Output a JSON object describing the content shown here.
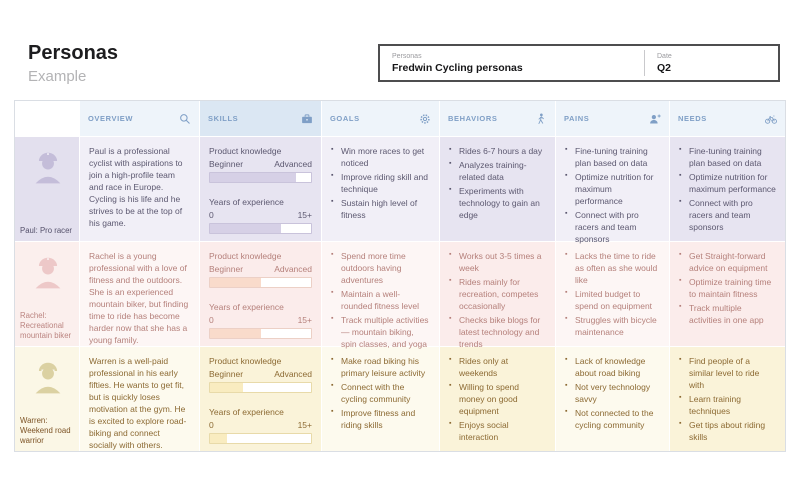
{
  "page": {
    "title": "Personas",
    "subtitle": "Example"
  },
  "info_box": {
    "left_label": "Personas",
    "left_value": "Fredwin Cycling personas",
    "right_label": "Date",
    "right_value": "Q2"
  },
  "colors": {
    "header_bg": "#eef4fa",
    "header_bg_active": "#dbe7f3",
    "header_text": "#7f9fc6"
  },
  "columns": [
    {
      "label": "OVERVIEW",
      "icon": "search-icon"
    },
    {
      "label": "SKILLS",
      "icon": "briefcase-icon"
    },
    {
      "label": "GOALS",
      "icon": "gear-icon"
    },
    {
      "label": "BEHAVIORS",
      "icon": "walking-person-icon"
    },
    {
      "label": "PAINS",
      "icon": "user-plus-icon"
    },
    {
      "label": "NEEDS",
      "icon": "bicycle-icon"
    }
  ],
  "skills_labels": {
    "product": "Product knowledge",
    "beginner": "Beginner",
    "advanced": "Advanced",
    "years": "Years of experience",
    "min": "0",
    "max": "15+"
  },
  "personas": [
    {
      "name": "Paul: Pro racer",
      "theme": {
        "bg_light": "#f1eff7",
        "bg_dark": "#e7e4f1",
        "bg_avatar": "#e3e0ee",
        "glyph": "#c4bdd9",
        "text": "#5c5870",
        "name": "#55516b",
        "fill": "#d6d0e6",
        "bar_border": "#c9c3db"
      },
      "overview": "Paul is a professional cyclist with aspirations to join a high-profile team and race in Europe. Cycling is his life and he strives to be at the top of his game.",
      "skills": {
        "product_pct": 85,
        "years_pct": 70
      },
      "goals": [
        "Win more races to get noticed",
        "Improve riding skill and technique",
        "Sustain high level of fitness"
      ],
      "behaviors": [
        "Rides 6-7 hours a day",
        "Analyzes training-related data",
        "Experiments with technology to gain an edge"
      ],
      "pains": [
        "Fine-tuning training plan based on data",
        "Optimize nutrition for maximum performance",
        "Connect with pro racers and team sponsors"
      ],
      "needs": [
        "Fine-tuning training plan based on data",
        "Optimize nutrition for maximum performance",
        "Connect with pro racers and team sponsors"
      ]
    },
    {
      "name": "Rachel: Recreational mountain biker",
      "theme": {
        "bg_light": "#fdf6f5",
        "bg_dark": "#fbeceb",
        "bg_avatar": "#fbefed",
        "glyph": "#edc8c8",
        "text": "#b5807b",
        "name": "#bb8480",
        "fill": "#f9dbcb",
        "bar_border": "#ecd0c6"
      },
      "overview": "Rachel is a young professional with a love of fitness and the outdoors. She is an experienced mountain biker, but finding time to ride has become harder now that she has a young family.",
      "skills": {
        "product_pct": 50,
        "years_pct": 50
      },
      "goals": [
        "Spend more time outdoors having adventures",
        "Maintain a well-rounded fitness level",
        "Track multiple activities — mountain biking, spin classes, and yoga"
      ],
      "behaviors": [
        "Works out 3-5 times a week",
        "Rides mainly for recreation, competes occasionally",
        "Checks bike blogs for latest technology and trends"
      ],
      "pains": [
        "Lacks the time to ride as often as she would like",
        "Limited budget to spend on equipment",
        "Struggles with bicycle maintenance"
      ],
      "needs": [
        "Get Straight-forward advice on equipment",
        "Optimize training time to maintain fitness",
        "Track multiple activities in one app"
      ]
    },
    {
      "name": "Warren: Weekend road warrior",
      "theme": {
        "bg_light": "#fdfaee",
        "bg_dark": "#faf3d9",
        "bg_avatar": "#fbf7e6",
        "glyph": "#dbd1a2",
        "text": "#8c6a33",
        "name": "#7d5426",
        "fill": "#f9ecc0",
        "bar_border": "#e8daa9"
      },
      "overview": "Warren is a well-paid professional in his early fifties. He wants to get fit, but is quickly loses motivation at the gym. He is excited to explore road-biking and connect socially with others.",
      "skills": {
        "product_pct": 33,
        "years_pct": 17
      },
      "goals": [
        "Make road biking his primary leisure activity",
        "Connect with the cycling community",
        "Improve fitness and riding skills"
      ],
      "behaviors": [
        "Rides only at weekends",
        "Willing to spend money on good equipment",
        "Enjoys social interaction"
      ],
      "pains": [
        "Lack of knowledge about road biking",
        "Not very technology savvy",
        "Not connected to the cycling community"
      ],
      "needs": [
        "Find people of a similar level to ride with",
        "Learn training techniques",
        "Get tips about riding skills"
      ]
    }
  ]
}
